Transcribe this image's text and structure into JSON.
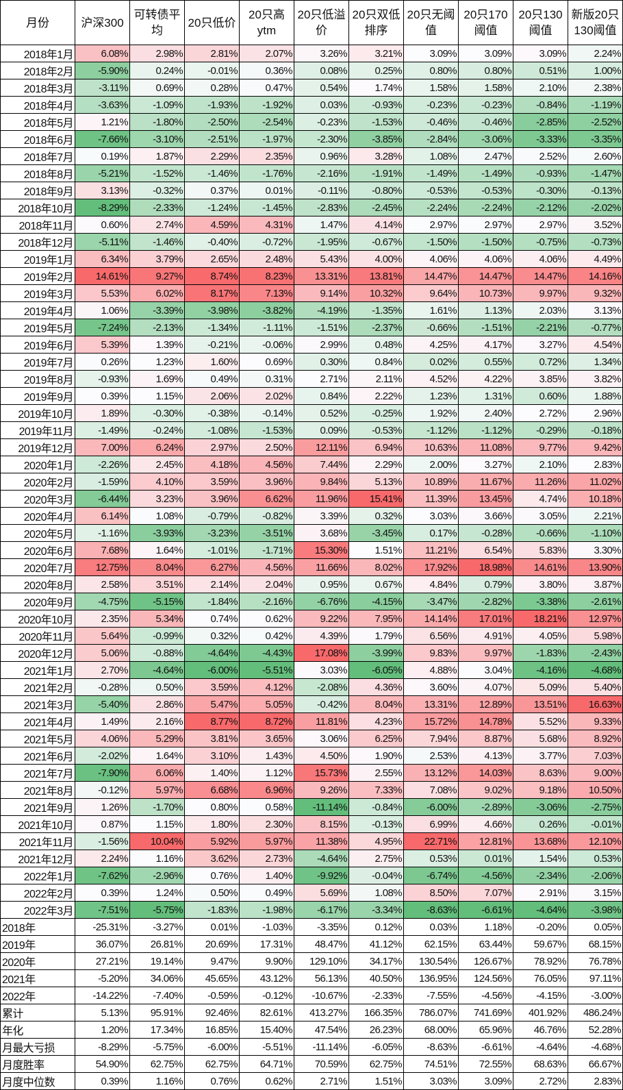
{
  "colors": {
    "high": "#F8696B",
    "mid": "#FCFCFF",
    "low": "#63BE7B"
  },
  "headers": [
    "月份",
    "沪深300",
    "可转债平均",
    "20只低价",
    "20只高ytm",
    "20只低溢价",
    "20只双低排序",
    "20只无阈值",
    "20只170阈值",
    "20只130阈值",
    "新版20只130阈值"
  ],
  "monthly": [
    {
      "label": "2018年1月",
      "values": [
        "6.08%",
        "2.98%",
        "2.81%",
        "2.07%",
        "3.26%",
        "3.21%",
        "3.09%",
        "3.09%",
        "3.09%",
        "2.24%"
      ]
    },
    {
      "label": "2018年2月",
      "values": [
        "-5.90%",
        "0.24%",
        "-0.01%",
        "0.36%",
        "0.08%",
        "0.25%",
        "0.80%",
        "0.80%",
        "0.51%",
        "1.00%"
      ]
    },
    {
      "label": "2018年3月",
      "values": [
        "-3.11%",
        "0.69%",
        "0.28%",
        "0.47%",
        "0.54%",
        "1.74%",
        "1.58%",
        "1.58%",
        "2.10%",
        "2.38%"
      ]
    },
    {
      "label": "2018年4月",
      "values": [
        "-3.63%",
        "-1.09%",
        "-1.93%",
        "-1.92%",
        "0.03%",
        "-0.93%",
        "-0.23%",
        "-0.23%",
        "-0.84%",
        "-1.19%"
      ]
    },
    {
      "label": "2018年5月",
      "values": [
        "1.21%",
        "-1.80%",
        "-2.50%",
        "-2.54%",
        "-0.23%",
        "-1.53%",
        "-0.46%",
        "-0.46%",
        "-2.85%",
        "-2.52%"
      ]
    },
    {
      "label": "2018年6月",
      "values": [
        "-7.66%",
        "-3.10%",
        "-2.51%",
        "-1.97%",
        "-2.30%",
        "-3.85%",
        "-2.84%",
        "-3.06%",
        "-3.33%",
        "-3.35%"
      ]
    },
    {
      "label": "2018年7月",
      "values": [
        "0.19%",
        "1.87%",
        "2.29%",
        "2.35%",
        "0.96%",
        "3.28%",
        "1.08%",
        "2.47%",
        "2.52%",
        "2.60%"
      ]
    },
    {
      "label": "2018年8月",
      "values": [
        "-5.21%",
        "-1.52%",
        "-1.46%",
        "-1.76%",
        "-2.16%",
        "-1.91%",
        "-1.49%",
        "-1.49%",
        "-0.93%",
        "-1.47%"
      ]
    },
    {
      "label": "2018年9月",
      "values": [
        "3.13%",
        "-0.32%",
        "0.37%",
        "0.01%",
        "-0.11%",
        "-0.80%",
        "-0.53%",
        "-0.53%",
        "-0.30%",
        "-0.13%"
      ]
    },
    {
      "label": "2018年10月",
      "values": [
        "-8.29%",
        "-2.33%",
        "-1.24%",
        "-1.45%",
        "-2.83%",
        "-2.45%",
        "-2.24%",
        "-2.24%",
        "-2.12%",
        "-2.02%"
      ]
    },
    {
      "label": "2018年11月",
      "values": [
        "0.60%",
        "2.74%",
        "4.59%",
        "4.31%",
        "1.47%",
        "4.14%",
        "2.97%",
        "2.97%",
        "2.97%",
        "3.52%"
      ]
    },
    {
      "label": "2018年12月",
      "values": [
        "-5.11%",
        "-1.46%",
        "-0.40%",
        "-0.72%",
        "-1.95%",
        "-0.67%",
        "-1.50%",
        "-1.50%",
        "-0.75%",
        "-0.73%"
      ]
    },
    {
      "label": "2019年1月",
      "values": [
        "6.34%",
        "3.79%",
        "2.65%",
        "2.48%",
        "5.43%",
        "4.00%",
        "4.06%",
        "4.06%",
        "4.06%",
        "4.49%"
      ]
    },
    {
      "label": "2019年2月",
      "values": [
        "14.61%",
        "9.27%",
        "8.74%",
        "8.23%",
        "13.31%",
        "13.81%",
        "14.47%",
        "14.47%",
        "14.47%",
        "14.16%"
      ]
    },
    {
      "label": "2019年3月",
      "values": [
        "5.53%",
        "6.02%",
        "8.17%",
        "7.13%",
        "9.14%",
        "10.32%",
        "9.64%",
        "10.73%",
        "9.97%",
        "9.32%"
      ]
    },
    {
      "label": "2019年4月",
      "values": [
        "1.06%",
        "-3.39%",
        "-3.98%",
        "-3.82%",
        "-4.19%",
        "-1.35%",
        "1.61%",
        "1.13%",
        "2.03%",
        "3.13%"
      ]
    },
    {
      "label": "2019年5月",
      "values": [
        "-7.24%",
        "-2.13%",
        "-1.34%",
        "-1.11%",
        "-1.51%",
        "-2.37%",
        "-0.66%",
        "-1.51%",
        "-2.21%",
        "-0.77%"
      ]
    },
    {
      "label": "2019年6月",
      "values": [
        "5.39%",
        "1.39%",
        "-0.21%",
        "-0.06%",
        "2.99%",
        "0.48%",
        "4.25%",
        "4.17%",
        "3.27%",
        "4.54%"
      ]
    },
    {
      "label": "2019年7月",
      "values": [
        "0.26%",
        "1.23%",
        "1.60%",
        "0.69%",
        "0.30%",
        "0.84%",
        "0.02%",
        "0.55%",
        "0.72%",
        "1.34%"
      ]
    },
    {
      "label": "2019年8月",
      "values": [
        "-0.93%",
        "1.69%",
        "0.49%",
        "0.31%",
        "2.71%",
        "2.11%",
        "4.52%",
        "4.22%",
        "3.85%",
        "3.82%"
      ]
    },
    {
      "label": "2019年9月",
      "values": [
        "0.39%",
        "1.15%",
        "2.06%",
        "2.02%",
        "0.84%",
        "2.22%",
        "1.23%",
        "1.31%",
        "0.60%",
        "1.88%"
      ]
    },
    {
      "label": "2019年10月",
      "values": [
        "1.89%",
        "-0.30%",
        "-0.38%",
        "-0.14%",
        "0.52%",
        "-0.25%",
        "1.92%",
        "2.40%",
        "2.72%",
        "2.96%"
      ]
    },
    {
      "label": "2019年11月",
      "values": [
        "-1.49%",
        "-0.24%",
        "-1.08%",
        "-1.53%",
        "0.09%",
        "-0.53%",
        "-1.12%",
        "-1.12%",
        "-0.29%",
        "-0.18%"
      ]
    },
    {
      "label": "2019年12月",
      "values": [
        "7.00%",
        "6.24%",
        "2.97%",
        "2.50%",
        "12.11%",
        "6.94%",
        "10.63%",
        "11.08%",
        "9.77%",
        "9.42%"
      ]
    },
    {
      "label": "2020年1月",
      "values": [
        "-2.26%",
        "2.45%",
        "4.18%",
        "4.56%",
        "7.44%",
        "2.29%",
        "2.00%",
        "3.27%",
        "2.10%",
        "2.83%"
      ]
    },
    {
      "label": "2020年2月",
      "values": [
        "-1.59%",
        "4.10%",
        "3.59%",
        "3.96%",
        "9.84%",
        "5.13%",
        "10.89%",
        "11.67%",
        "11.26%",
        "11.02%"
      ]
    },
    {
      "label": "2020年3月",
      "values": [
        "-6.44%",
        "3.23%",
        "3.96%",
        "6.62%",
        "11.96%",
        "15.41%",
        "11.39%",
        "13.45%",
        "4.74%",
        "10.18%"
      ]
    },
    {
      "label": "2020年4月",
      "values": [
        "6.14%",
        "1.08%",
        "-0.79%",
        "-0.82%",
        "3.39%",
        "0.32%",
        "3.03%",
        "3.66%",
        "3.05%",
        "2.21%"
      ]
    },
    {
      "label": "2020年5月",
      "values": [
        "-1.16%",
        "-3.93%",
        "-3.23%",
        "-3.51%",
        "3.68%",
        "-3.45%",
        "0.17%",
        "-0.28%",
        "-0.66%",
        "-1.10%"
      ]
    },
    {
      "label": "2020年6月",
      "values": [
        "7.68%",
        "1.64%",
        "-1.01%",
        "-1.71%",
        "15.30%",
        "1.51%",
        "11.21%",
        "6.54%",
        "5.83%",
        "3.30%"
      ]
    },
    {
      "label": "2020年7月",
      "values": [
        "12.75%",
        "8.04%",
        "6.27%",
        "4.56%",
        "11.66%",
        "8.02%",
        "17.92%",
        "18.98%",
        "14.61%",
        "13.90%"
      ]
    },
    {
      "label": "2020年8月",
      "values": [
        "2.58%",
        "3.51%",
        "2.14%",
        "2.04%",
        "0.95%",
        "0.67%",
        "4.84%",
        "0.79%",
        "3.80%",
        "3.87%"
      ]
    },
    {
      "label": "2020年9月",
      "values": [
        "-4.75%",
        "-5.15%",
        "-1.84%",
        "-2.16%",
        "-6.76%",
        "-4.15%",
        "-3.47%",
        "-2.82%",
        "-3.38%",
        "-2.61%"
      ]
    },
    {
      "label": "2020年10月",
      "values": [
        "2.35%",
        "5.34%",
        "0.74%",
        "0.62%",
        "9.22%",
        "7.95%",
        "14.14%",
        "17.01%",
        "18.21%",
        "12.97%"
      ]
    },
    {
      "label": "2020年11月",
      "values": [
        "5.64%",
        "-0.99%",
        "0.32%",
        "0.42%",
        "4.39%",
        "1.79%",
        "6.56%",
        "4.91%",
        "4.05%",
        "5.98%"
      ]
    },
    {
      "label": "2020年12月",
      "values": [
        "5.06%",
        "-0.88%",
        "-4.64%",
        "-4.43%",
        "17.08%",
        "-3.99%",
        "9.83%",
        "9.97%",
        "-1.83%",
        "-2.43%"
      ]
    },
    {
      "label": "2021年1月",
      "values": [
        "2.70%",
        "-4.64%",
        "-6.00%",
        "-5.51%",
        "3.03%",
        "-6.05%",
        "4.88%",
        "3.04%",
        "-4.16%",
        "-4.68%"
      ]
    },
    {
      "label": "2021年2月",
      "values": [
        "-0.28%",
        "0.50%",
        "3.59%",
        "4.12%",
        "-2.08%",
        "4.36%",
        "3.60%",
        "4.07%",
        "5.09%",
        "5.40%"
      ]
    },
    {
      "label": "2021年3月",
      "values": [
        "-5.40%",
        "2.86%",
        "5.47%",
        "5.05%",
        "-0.42%",
        "8.04%",
        "13.31%",
        "12.89%",
        "13.51%",
        "16.63%"
      ]
    },
    {
      "label": "2021年4月",
      "values": [
        "1.49%",
        "2.16%",
        "8.77%",
        "8.72%",
        "11.81%",
        "4.23%",
        "15.72%",
        "14.78%",
        "5.52%",
        "9.33%"
      ]
    },
    {
      "label": "2021年5月",
      "values": [
        "4.06%",
        "5.29%",
        "3.81%",
        "3.65%",
        "3.06%",
        "6.25%",
        "7.94%",
        "8.87%",
        "5.68%",
        "8.92%"
      ]
    },
    {
      "label": "2021年6月",
      "values": [
        "-2.02%",
        "1.64%",
        "3.10%",
        "1.43%",
        "4.50%",
        "1.90%",
        "2.53%",
        "4.13%",
        "3.77%",
        "7.03%"
      ]
    },
    {
      "label": "2021年7月",
      "values": [
        "-7.90%",
        "6.06%",
        "1.40%",
        "1.12%",
        "15.73%",
        "2.55%",
        "13.12%",
        "14.03%",
        "8.63%",
        "9.00%"
      ]
    },
    {
      "label": "2021年8月",
      "values": [
        "-0.12%",
        "5.97%",
        "6.68%",
        "6.96%",
        "9.26%",
        "7.33%",
        "7.08%",
        "9.02%",
        "9.18%",
        "10.50%"
      ]
    },
    {
      "label": "2021年9月",
      "values": [
        "1.26%",
        "-1.70%",
        "0.80%",
        "0.58%",
        "-11.14%",
        "-0.84%",
        "-6.00%",
        "-2.89%",
        "-3.06%",
        "-2.75%"
      ]
    },
    {
      "label": "2021年10月",
      "values": [
        "0.87%",
        "1.15%",
        "1.80%",
        "2.30%",
        "8.15%",
        "-0.13%",
        "6.99%",
        "4.66%",
        "0.26%",
        "-0.01%"
      ]
    },
    {
      "label": "2021年11月",
      "values": [
        "-1.56%",
        "10.04%",
        "5.92%",
        "5.97%",
        "11.38%",
        "4.95%",
        "22.71%",
        "12.81%",
        "13.68%",
        "12.10%"
      ]
    },
    {
      "label": "2021年12月",
      "values": [
        "2.24%",
        "1.16%",
        "3.62%",
        "2.73%",
        "-4.64%",
        "2.75%",
        "0.53%",
        "0.01%",
        "1.54%",
        "0.53%"
      ]
    },
    {
      "label": "2022年1月",
      "values": [
        "-7.62%",
        "-2.96%",
        "0.76%",
        "1.40%",
        "-9.92%",
        "-0.04%",
        "-6.74%",
        "-4.56%",
        "-2.34%",
        "-2.06%"
      ]
    },
    {
      "label": "2022年2月",
      "values": [
        "0.39%",
        "1.24%",
        "0.50%",
        "0.49%",
        "5.69%",
        "1.08%",
        "8.50%",
        "7.07%",
        "2.91%",
        "3.15%"
      ]
    },
    {
      "label": "2022年3月",
      "values": [
        "-7.51%",
        "-5.75%",
        "-1.83%",
        "-1.98%",
        "-6.17%",
        "-3.34%",
        "-8.63%",
        "-6.61%",
        "-4.64%",
        "-3.98%"
      ]
    }
  ],
  "summary": [
    {
      "label": "2018年",
      "values": [
        "-25.31%",
        "-3.27%",
        "0.01%",
        "-1.03%",
        "-3.35%",
        "0.12%",
        "0.03%",
        "1.18%",
        "-0.20%",
        "0.05%"
      ]
    },
    {
      "label": "2019年",
      "values": [
        "36.07%",
        "26.81%",
        "20.69%",
        "17.31%",
        "48.47%",
        "41.12%",
        "62.15%",
        "63.44%",
        "59.67%",
        "68.15%"
      ]
    },
    {
      "label": "2020年",
      "values": [
        "27.21%",
        "19.14%",
        "9.47%",
        "9.90%",
        "129.10%",
        "34.17%",
        "130.54%",
        "126.67%",
        "78.92%",
        "76.78%"
      ]
    },
    {
      "label": "2021年",
      "values": [
        "-5.20%",
        "34.06%",
        "45.65%",
        "43.12%",
        "56.13%",
        "40.50%",
        "136.95%",
        "124.56%",
        "76.05%",
        "97.11%"
      ]
    },
    {
      "label": "2022年",
      "values": [
        "-14.22%",
        "-7.40%",
        "-0.59%",
        "-0.12%",
        "-10.67%",
        "-2.33%",
        "-7.55%",
        "-4.56%",
        "-4.15%",
        "-3.00%"
      ]
    },
    {
      "label": "累计",
      "values": [
        "5.13%",
        "95.91%",
        "92.46%",
        "82.61%",
        "413.27%",
        "166.35%",
        "786.07%",
        "741.69%",
        "401.92%",
        "486.24%"
      ]
    },
    {
      "label": "年化",
      "values": [
        "1.20%",
        "17.34%",
        "16.85%",
        "15.40%",
        "47.54%",
        "26.23%",
        "68.00%",
        "65.96%",
        "46.76%",
        "52.28%"
      ]
    },
    {
      "label": "月最大亏损",
      "values": [
        "-8.29%",
        "-5.75%",
        "-6.00%",
        "-5.51%",
        "-11.14%",
        "-6.05%",
        "-8.63%",
        "-6.61%",
        "-4.64%",
        "-4.68%"
      ]
    },
    {
      "label": "月度胜率",
      "values": [
        "54.90%",
        "62.75%",
        "62.75%",
        "64.71%",
        "70.59%",
        "62.75%",
        "74.51%",
        "72.55%",
        "68.63%",
        "66.67%"
      ]
    },
    {
      "label": "月度中位数",
      "values": [
        "0.39%",
        "1.16%",
        "0.76%",
        "0.62%",
        "2.71%",
        "1.51%",
        "3.03%",
        "3.09%",
        "2.72%",
        "2.83%"
      ]
    }
  ]
}
